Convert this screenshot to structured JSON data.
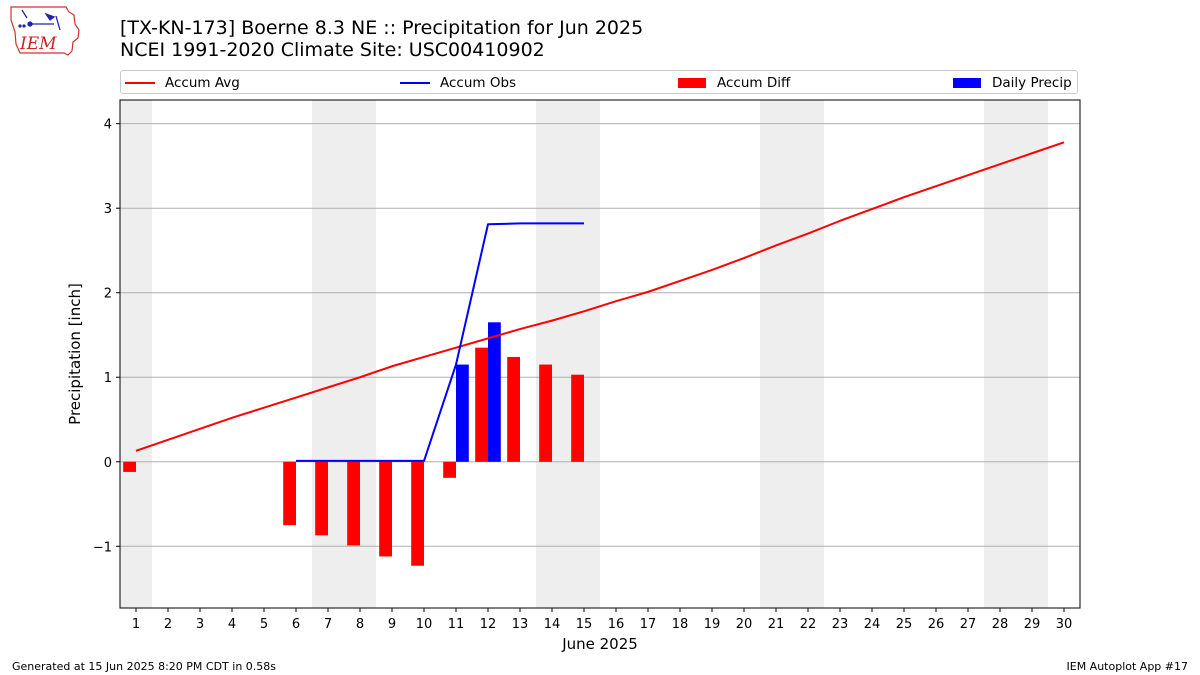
{
  "header": {
    "logo_text": "IEM",
    "logo_icon": "iowa-state-outline-icon",
    "title_line1": "[TX-KN-173] Boerne 8.3 NE :: Precipitation for Jun 2025",
    "title_line2": "NCEI 1991-2020 Climate Site: USC00410902"
  },
  "legend": {
    "items": [
      {
        "label": "Accum Avg",
        "type": "line",
        "color": "#ff0000"
      },
      {
        "label": "Accum Obs",
        "type": "line",
        "color": "#0000ff"
      },
      {
        "label": "Accum Diff",
        "type": "bar",
        "color": "#ff0000"
      },
      {
        "label": "Daily Precip",
        "type": "bar",
        "color": "#0000ff"
      }
    ]
  },
  "footer": {
    "left": "Generated at 15 Jun 2025 8:20 PM CDT in 0.58s",
    "right": "IEM Autoplot App #17"
  },
  "chart_data": {
    "type": "bar",
    "xlabel": "June 2025",
    "ylabel": "Precipitation [inch]",
    "x": [
      1,
      2,
      3,
      4,
      5,
      6,
      7,
      8,
      9,
      10,
      11,
      12,
      13,
      14,
      15,
      16,
      17,
      18,
      19,
      20,
      21,
      22,
      23,
      24,
      25,
      26,
      27,
      28,
      29,
      30
    ],
    "x_tick_labels": [
      "1",
      "2",
      "3",
      "4",
      "5",
      "6",
      "7",
      "8",
      "9",
      "10",
      "11",
      "12",
      "13",
      "14",
      "15",
      "16",
      "17",
      "18",
      "19",
      "20",
      "21",
      "22",
      "23",
      "24",
      "25",
      "26",
      "27",
      "28",
      "29",
      "30"
    ],
    "xlim": [
      0.5,
      30.5
    ],
    "ylim": [
      -1.73,
      4.28
    ],
    "y_ticks": [
      -1,
      0,
      1,
      2,
      3,
      4
    ],
    "y_tick_labels": [
      "−1",
      "0",
      "1",
      "2",
      "3",
      "4"
    ],
    "grid": "horizontal",
    "legend_placement": "top",
    "weekend_shading": [
      [
        0.5,
        1.5
      ],
      [
        6.5,
        8.5
      ],
      [
        13.5,
        15.5
      ],
      [
        20.5,
        22.5
      ],
      [
        27.5,
        29.5
      ]
    ],
    "series": [
      {
        "name": "Accum Avg",
        "kind": "line",
        "color": "#ff0000",
        "x": [
          1,
          2,
          3,
          4,
          5,
          6,
          7,
          8,
          9,
          10,
          11,
          12,
          13,
          14,
          15,
          16,
          17,
          18,
          19,
          20,
          21,
          22,
          23,
          24,
          25,
          26,
          27,
          28,
          29,
          30
        ],
        "values": [
          0.13,
          0.26,
          0.39,
          0.52,
          0.64,
          0.76,
          0.88,
          1.0,
          1.13,
          1.24,
          1.35,
          1.46,
          1.57,
          1.67,
          1.78,
          1.9,
          2.01,
          2.14,
          2.27,
          2.41,
          2.56,
          2.7,
          2.85,
          2.99,
          3.13,
          3.26,
          3.39,
          3.52,
          3.65,
          3.78
        ]
      },
      {
        "name": "Accum Obs",
        "kind": "line",
        "color": "#0000ff",
        "x": [
          6,
          7,
          8,
          9,
          10,
          11,
          12,
          13,
          14,
          15
        ],
        "values": [
          0.01,
          0.01,
          0.01,
          0.01,
          0.01,
          1.15,
          2.81,
          2.82,
          2.82,
          2.82
        ]
      },
      {
        "name": "Accum Diff",
        "kind": "bar",
        "color": "#ff0000",
        "x": [
          1,
          6,
          7,
          8,
          9,
          10,
          11,
          12,
          13,
          14,
          15
        ],
        "values": [
          -0.12,
          -0.75,
          -0.87,
          -0.99,
          -1.12,
          -1.23,
          -0.19,
          1.35,
          1.24,
          1.15,
          1.03
        ]
      },
      {
        "name": "Daily Precip",
        "kind": "bar",
        "color": "#0000ff",
        "x": [
          11,
          12
        ],
        "values": [
          1.15,
          1.65
        ]
      }
    ]
  }
}
